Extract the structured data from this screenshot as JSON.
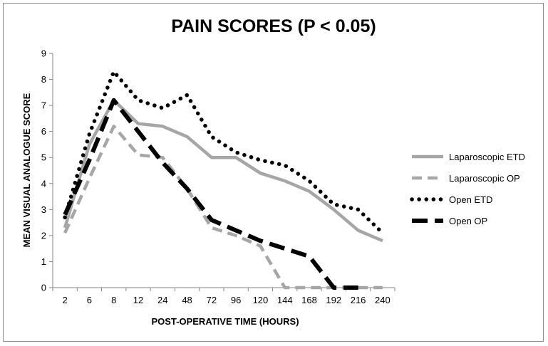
{
  "chart_data": {
    "type": "line",
    "title": "PAIN SCORES (P < 0.05)",
    "xlabel": "POST-OPERATIVE TIME (HOURS)",
    "ylabel": "MEAN VISUAL ANALOGUE SCORE",
    "categories": [
      "2",
      "6",
      "8",
      "12",
      "24",
      "48",
      "72",
      "96",
      "120",
      "144",
      "168",
      "192",
      "216",
      "240"
    ],
    "ylim": [
      0,
      9
    ],
    "yticks": [
      "0",
      "1",
      "2",
      "3",
      "4",
      "5",
      "6",
      "7",
      "8",
      "9"
    ],
    "grid": false,
    "legend_position": "right",
    "series": [
      {
        "name": "Laparoscopic ETD",
        "color": "#a6a6a6",
        "style": "solid",
        "values": [
          2.3,
          5.5,
          7.2,
          6.3,
          6.2,
          5.8,
          5.0,
          5.0,
          4.4,
          4.1,
          3.7,
          3.0,
          2.2,
          1.8
        ]
      },
      {
        "name": "Laparoscopic OP",
        "color": "#a6a6a6",
        "style": "dashed",
        "values": [
          2.1,
          4.2,
          6.2,
          5.1,
          5.0,
          3.8,
          2.3,
          2.0,
          1.6,
          0.0,
          0.0,
          0.0,
          0.0,
          0.0
        ]
      },
      {
        "name": "Open ETD",
        "color": "#000000",
        "style": "dotted",
        "values": [
          2.7,
          5.9,
          8.3,
          7.2,
          6.9,
          7.4,
          5.8,
          5.2,
          4.9,
          4.7,
          4.1,
          3.2,
          3.0,
          2.1
        ]
      },
      {
        "name": "Open OP",
        "color": "#000000",
        "style": "long-dash",
        "values": [
          2.8,
          4.9,
          7.2,
          6.0,
          4.8,
          3.8,
          2.6,
          2.2,
          1.8,
          1.5,
          1.2,
          0.0,
          0.0,
          null
        ]
      }
    ]
  }
}
